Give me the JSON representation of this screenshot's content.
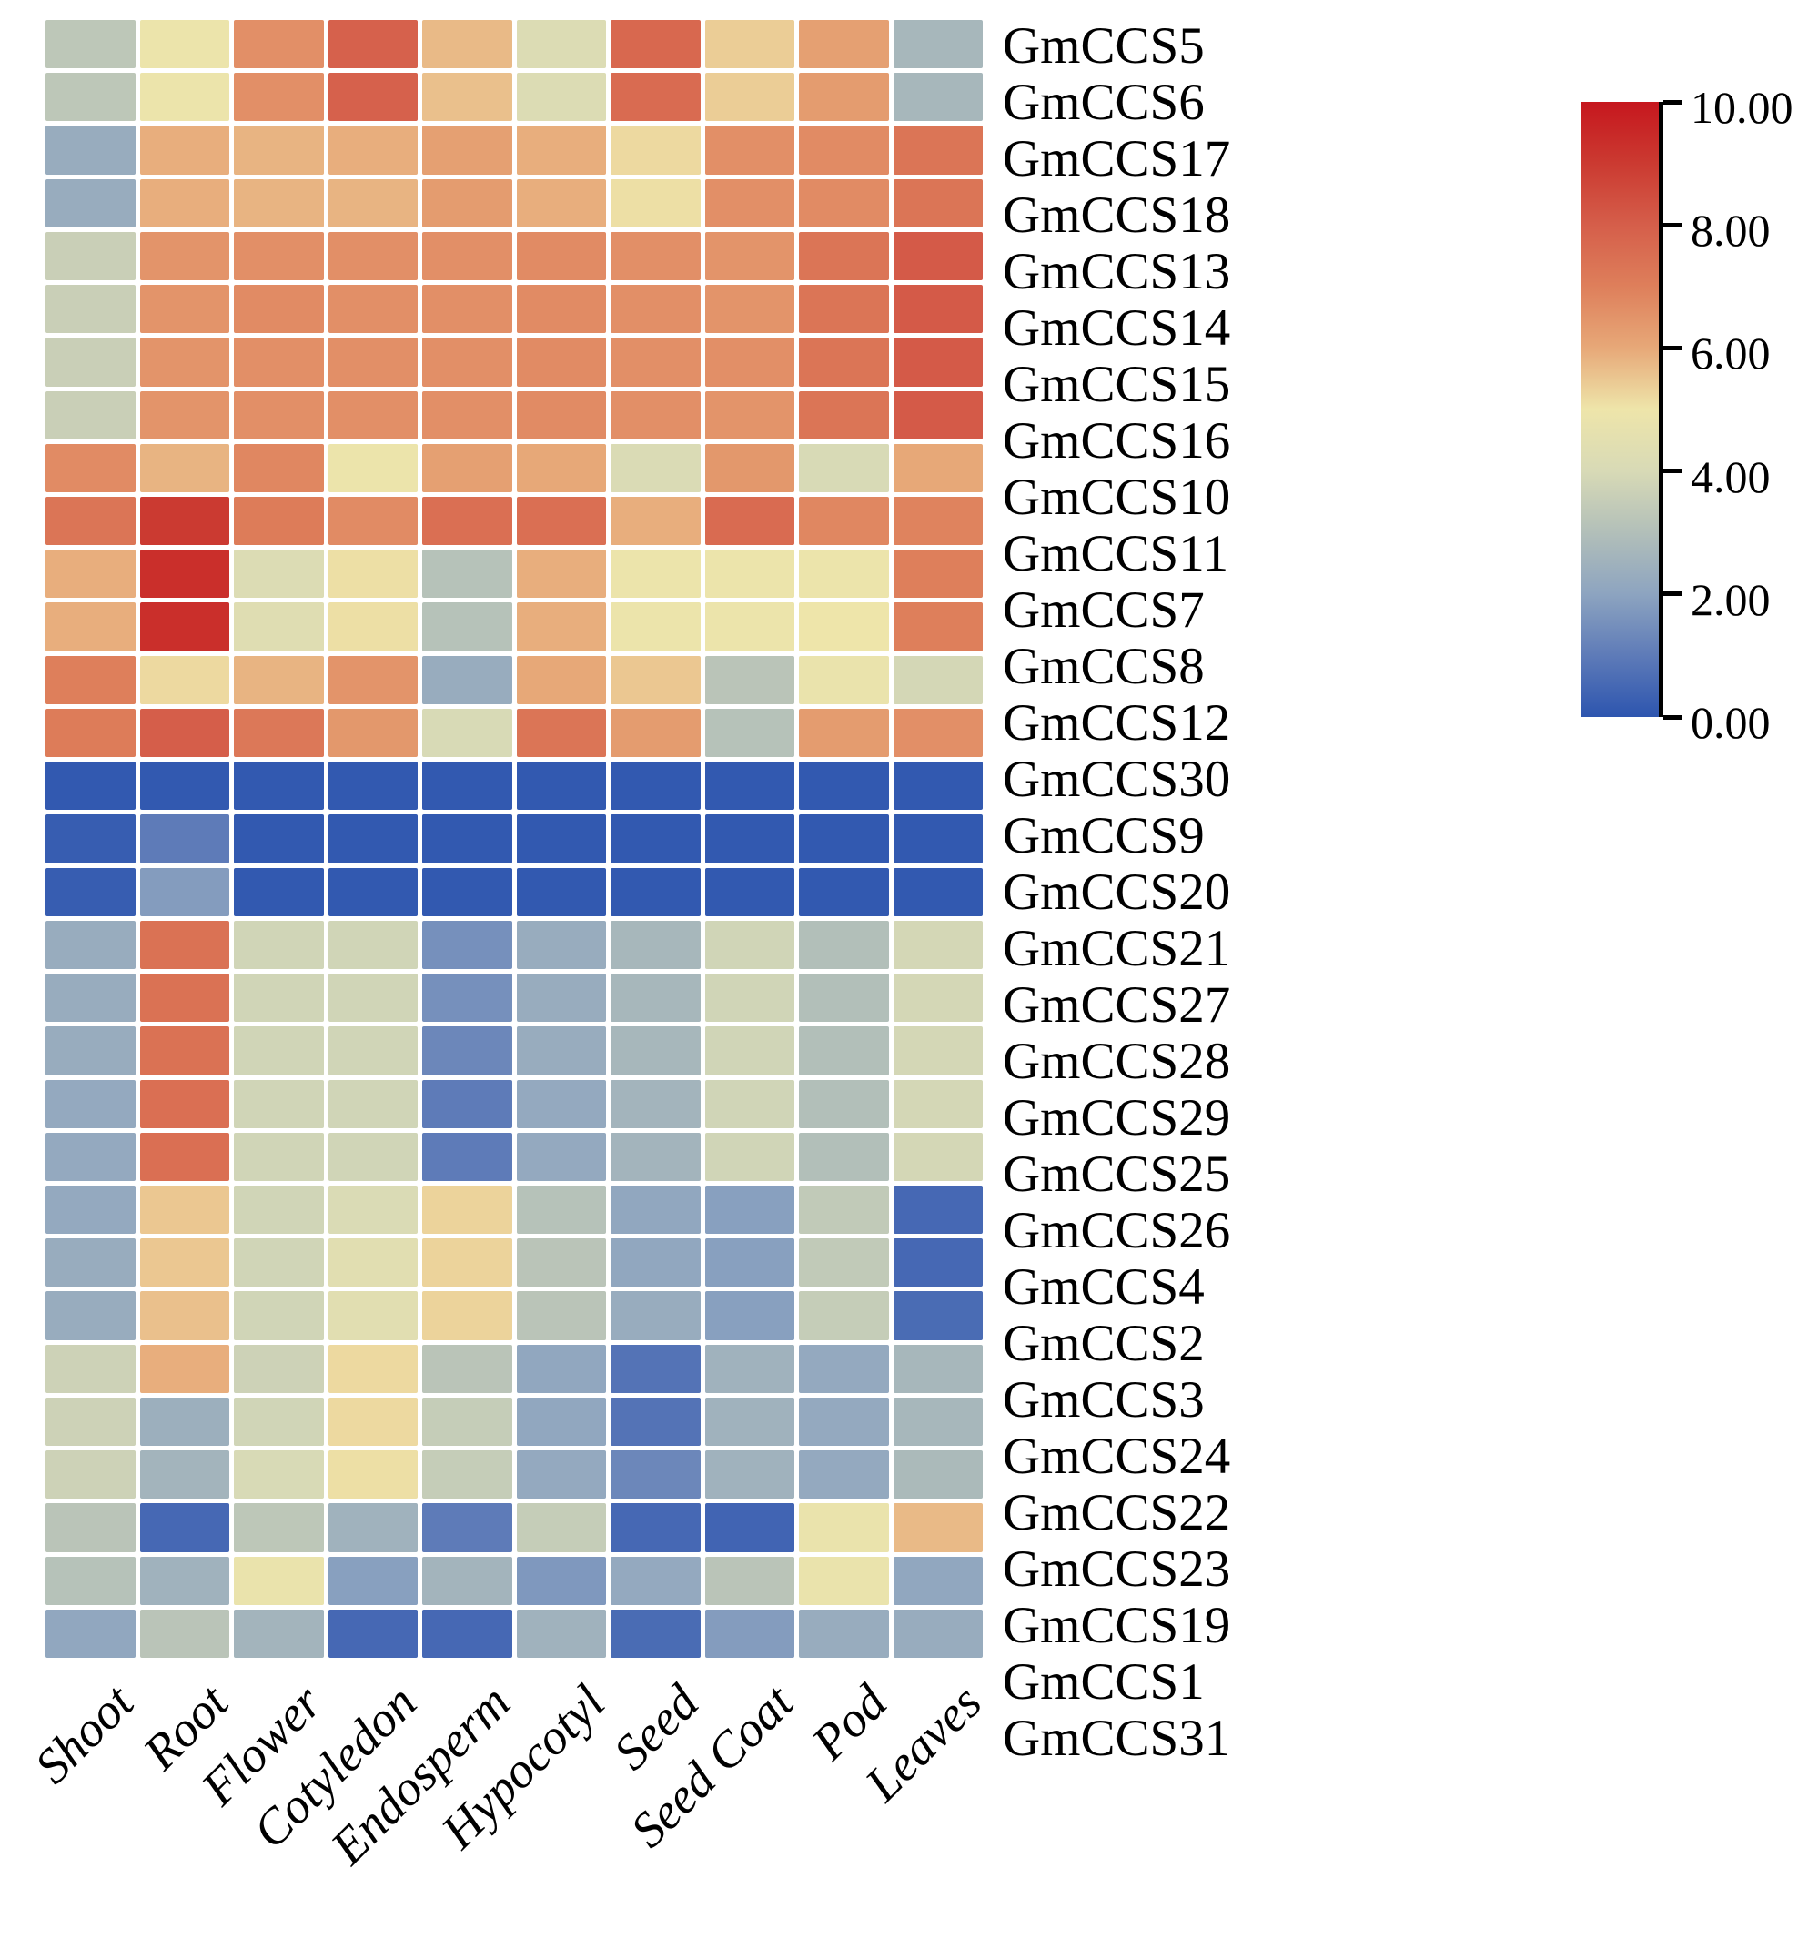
{
  "chart_data": {
    "type": "heatmap",
    "title": "",
    "xlabel": "",
    "ylabel": "",
    "grid": false,
    "legend_position": "right",
    "columns": [
      "Shoot",
      "Root",
      "Flower",
      "Cotyledon",
      "Endosperm",
      "Hypocotyl",
      "Seed",
      "Seed Coat",
      "Pod",
      "Leaves"
    ],
    "rows": [
      "GmCCS5",
      "GmCCS6",
      "GmCCS17",
      "GmCCS18",
      "GmCCS13",
      "GmCCS14",
      "GmCCS15",
      "GmCCS16",
      "GmCCS10",
      "GmCCS11",
      "GmCCS7",
      "GmCCS8",
      "GmCCS12",
      "GmCCS30",
      "GmCCS9",
      "GmCCS20",
      "GmCCS21",
      "GmCCS27",
      "GmCCS28",
      "GmCCS29",
      "GmCCS25",
      "GmCCS26",
      "GmCCS4",
      "GmCCS2",
      "GmCCS3",
      "GmCCS24",
      "GmCCS22",
      "GmCCS23",
      "GmCCS19",
      "GmCCS1",
      "GmCCS31"
    ],
    "values": [
      [
        3.3,
        4.9,
        6.6,
        7.9,
        5.7,
        4.2,
        7.7,
        5.4,
        6.2,
        2.7
      ],
      [
        3.3,
        4.9,
        6.6,
        7.9,
        5.6,
        4.2,
        7.6,
        5.4,
        6.3,
        2.7
      ],
      [
        2.3,
        5.9,
        5.8,
        5.9,
        6.2,
        5.9,
        5.2,
        6.6,
        6.7,
        7.3
      ],
      [
        2.3,
        5.9,
        5.8,
        5.8,
        6.3,
        5.9,
        5.1,
        6.6,
        6.7,
        7.3
      ],
      [
        3.6,
        6.5,
        6.6,
        6.6,
        6.6,
        6.7,
        6.6,
        6.5,
        7.3,
        8.1
      ],
      [
        3.6,
        6.5,
        6.7,
        6.6,
        6.6,
        6.7,
        6.6,
        6.5,
        7.3,
        8.1
      ],
      [
        3.6,
        6.5,
        6.6,
        6.6,
        6.6,
        6.7,
        6.6,
        6.6,
        7.3,
        8.1
      ],
      [
        3.6,
        6.5,
        6.6,
        6.6,
        6.6,
        6.7,
        6.6,
        6.5,
        7.3,
        8.1
      ],
      [
        6.7,
        5.8,
        6.8,
        4.9,
        6.2,
        6.0,
        4.1,
        6.4,
        4.0,
        6.0
      ],
      [
        7.3,
        9.0,
        7.1,
        6.7,
        7.5,
        7.5,
        5.9,
        7.6,
        6.8,
        6.9
      ],
      [
        5.9,
        9.3,
        4.2,
        5.1,
        3.1,
        5.9,
        4.9,
        4.9,
        4.9,
        7.0
      ],
      [
        5.9,
        9.3,
        4.3,
        5.1,
        3.1,
        5.9,
        4.9,
        4.9,
        5.0,
        7.0
      ],
      [
        7.0,
        5.2,
        5.8,
        6.5,
        2.3,
        6.0,
        5.5,
        3.2,
        4.8,
        3.9
      ],
      [
        7.1,
        8.0,
        7.2,
        6.4,
        4.0,
        7.3,
        6.3,
        3.1,
        6.3,
        6.6
      ],
      [
        0.1,
        0.1,
        0.1,
        0.1,
        0.1,
        0.1,
        0.1,
        0.1,
        0.1,
        0.1
      ],
      [
        0.2,
        1.0,
        0.1,
        0.1,
        0.1,
        0.1,
        0.1,
        0.1,
        0.1,
        0.1
      ],
      [
        0.2,
        1.8,
        0.1,
        0.1,
        0.1,
        0.1,
        0.1,
        0.1,
        0.1,
        0.1
      ],
      [
        2.3,
        7.4,
        3.8,
        3.8,
        1.5,
        2.3,
        2.7,
        3.8,
        3.0,
        3.9
      ],
      [
        2.3,
        7.4,
        3.8,
        3.8,
        1.5,
        2.3,
        2.7,
        3.8,
        3.0,
        3.9
      ],
      [
        2.3,
        7.4,
        3.8,
        3.8,
        1.3,
        2.3,
        2.7,
        3.8,
        3.0,
        3.9
      ],
      [
        2.2,
        7.5,
        3.8,
        3.8,
        1.0,
        2.2,
        2.6,
        3.8,
        3.0,
        3.9
      ],
      [
        2.2,
        7.5,
        3.8,
        3.8,
        1.0,
        2.2,
        2.6,
        3.8,
        3.0,
        3.9
      ],
      [
        2.2,
        5.5,
        3.8,
        4.1,
        5.3,
        3.1,
        2.1,
        1.9,
        3.4,
        0.5
      ],
      [
        2.3,
        5.5,
        3.8,
        4.4,
        5.3,
        3.2,
        2.1,
        1.9,
        3.4,
        0.5
      ],
      [
        2.3,
        5.6,
        3.8,
        4.4,
        5.3,
        3.2,
        2.3,
        1.9,
        3.5,
        0.6
      ],
      [
        3.7,
        5.9,
        3.7,
        5.2,
        3.2,
        2.1,
        0.8,
        2.5,
        2.2,
        2.7
      ],
      [
        3.7,
        2.4,
        3.8,
        5.2,
        3.5,
        2.1,
        0.8,
        2.5,
        2.2,
        2.7
      ],
      [
        3.7,
        2.6,
        4.0,
        5.1,
        3.5,
        2.2,
        1.3,
        2.5,
        2.2,
        2.8
      ],
      [
        3.2,
        0.5,
        3.3,
        2.5,
        1.0,
        3.5,
        0.5,
        0.4,
        4.8,
        5.7
      ],
      [
        3.1,
        2.5,
        4.8,
        1.9,
        2.6,
        1.7,
        2.2,
        3.2,
        4.8,
        2.1
      ],
      [
        2.1,
        3.2,
        2.6,
        0.5,
        0.5,
        2.5,
        0.6,
        1.8,
        2.3,
        2.3
      ]
    ],
    "value_range": [
      0,
      10
    ],
    "colorbar": {
      "position": "right",
      "tick_labels": [
        "10.00",
        "8.00",
        "6.00",
        "4.00",
        "2.00",
        "0.00"
      ],
      "tick_values": [
        10,
        8,
        6,
        4,
        2,
        0
      ]
    },
    "color_scale_stops": [
      {
        "v": 0,
        "c": "#2d55af"
      },
      {
        "v": 1,
        "c": "#5e7bb8"
      },
      {
        "v": 2,
        "c": "#8da4c0"
      },
      {
        "v": 3,
        "c": "#b2bfb9"
      },
      {
        "v": 4,
        "c": "#d8dab6"
      },
      {
        "v": 5,
        "c": "#eee5aa"
      },
      {
        "v": 6,
        "c": "#e7a878"
      },
      {
        "v": 7,
        "c": "#de7f5b"
      },
      {
        "v": 8,
        "c": "#d55e4a"
      },
      {
        "v": 9,
        "c": "#cb3a31"
      },
      {
        "v": 10,
        "c": "#c6171e"
      }
    ],
    "cell_gap_color": "#ffffff"
  }
}
